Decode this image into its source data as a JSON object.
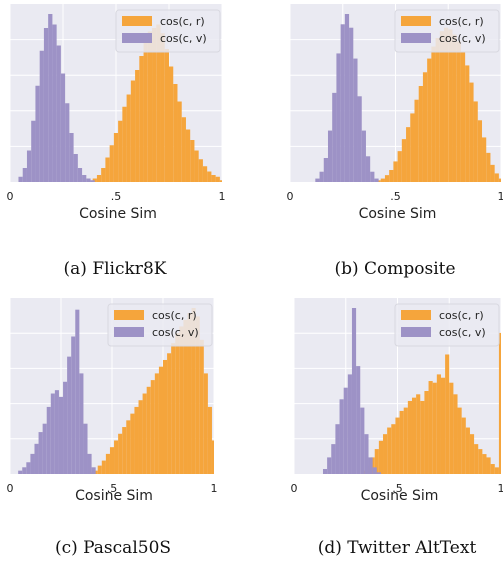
{
  "colors": {
    "r": "#f5a53c",
    "v": "#9d92c6",
    "plot_bg": "#eaeaf2",
    "grid": "#ffffff"
  },
  "chart_data": [
    {
      "type": "histogram",
      "caption": "(a) Flickr8K",
      "xlabel": "Cosine Sim",
      "xticks": [
        "0",
        ".5",
        "1"
      ],
      "xlim": [
        0,
        1
      ],
      "grid": true,
      "legend_position": "top-right",
      "series": [
        {
          "name": "cos(c, r)",
          "color": "#f5a53c",
          "x": [
            0.4,
            0.42,
            0.44,
            0.46,
            0.48,
            0.5,
            0.52,
            0.54,
            0.56,
            0.58,
            0.6,
            0.62,
            0.64,
            0.66,
            0.68,
            0.7,
            0.72,
            0.74,
            0.76,
            0.78,
            0.8,
            0.82,
            0.84,
            0.86,
            0.88,
            0.9,
            0.92,
            0.94,
            0.96,
            0.98,
            1.0
          ],
          "values": [
            2,
            4,
            8,
            14,
            21,
            28,
            35,
            43,
            50,
            58,
            64,
            72,
            80,
            86,
            88,
            90,
            85,
            76,
            66,
            56,
            46,
            37,
            30,
            24,
            18,
            13,
            9,
            6,
            4,
            3,
            1
          ]
        },
        {
          "name": "cos(c, v)",
          "color": "#9d92c6",
          "x": [
            0.05,
            0.07,
            0.09,
            0.11,
            0.13,
            0.15,
            0.17,
            0.19,
            0.21,
            0.23,
            0.25,
            0.27,
            0.29,
            0.31,
            0.33,
            0.35,
            0.37,
            0.39
          ],
          "values": [
            3,
            8,
            18,
            35,
            55,
            75,
            88,
            96,
            90,
            78,
            62,
            45,
            28,
            16,
            8,
            4,
            2,
            1
          ]
        }
      ]
    },
    {
      "type": "histogram",
      "caption": "(b) Composite",
      "xlabel": "Cosine Sim",
      "xticks": [
        "0",
        ".5",
        "1"
      ],
      "xlim": [
        0,
        1
      ],
      "grid": true,
      "legend_position": "top-right",
      "series": [
        {
          "name": "cos(c, r)",
          "color": "#f5a53c",
          "x": [
            0.42,
            0.44,
            0.46,
            0.48,
            0.5,
            0.52,
            0.54,
            0.56,
            0.58,
            0.6,
            0.62,
            0.64,
            0.66,
            0.68,
            0.7,
            0.72,
            0.74,
            0.76,
            0.78,
            0.8,
            0.82,
            0.84,
            0.86,
            0.88,
            0.9,
            0.92,
            0.94,
            0.96,
            0.98,
            1.0
          ],
          "values": [
            1,
            2,
            4,
            7,
            12,
            18,
            25,
            32,
            40,
            48,
            56,
            64,
            72,
            79,
            84,
            88,
            90,
            89,
            86,
            82,
            76,
            68,
            58,
            47,
            36,
            26,
            17,
            10,
            5,
            2
          ]
        },
        {
          "name": "cos(c, v)",
          "color": "#9d92c6",
          "x": [
            0.13,
            0.15,
            0.17,
            0.19,
            0.21,
            0.23,
            0.25,
            0.27,
            0.29,
            0.31,
            0.33,
            0.35,
            0.37,
            0.39,
            0.41
          ],
          "values": [
            2,
            6,
            14,
            30,
            52,
            75,
            92,
            98,
            90,
            72,
            50,
            30,
            15,
            6,
            2
          ]
        }
      ]
    },
    {
      "type": "histogram",
      "caption": "(c) Pascal50S",
      "xlabel": "Cosine Sim",
      "xticks": [
        "0",
        ".5",
        "1"
      ],
      "xlim": [
        0,
        1
      ],
      "grid": true,
      "legend_position": "top-right",
      "series": [
        {
          "name": "cos(c, r)",
          "color": "#f5a53c",
          "x": [
            0.4,
            0.42,
            0.44,
            0.46,
            0.48,
            0.5,
            0.52,
            0.54,
            0.56,
            0.58,
            0.6,
            0.62,
            0.64,
            0.66,
            0.68,
            0.7,
            0.72,
            0.74,
            0.76,
            0.78,
            0.8,
            0.82,
            0.84,
            0.86,
            0.88,
            0.9,
            0.92,
            0.94,
            0.96,
            0.98,
            1.0
          ],
          "values": [
            1,
            2,
            5,
            8,
            12,
            16,
            20,
            24,
            28,
            32,
            36,
            40,
            44,
            48,
            52,
            56,
            60,
            64,
            68,
            72,
            78,
            84,
            88,
            92,
            96,
            99,
            94,
            80,
            60,
            40,
            20
          ]
        },
        {
          "name": "cos(c, v)",
          "color": "#9d92c6",
          "x": [
            0.05,
            0.07,
            0.09,
            0.11,
            0.13,
            0.15,
            0.17,
            0.19,
            0.21,
            0.23,
            0.25,
            0.27,
            0.29,
            0.31,
            0.33,
            0.35,
            0.37,
            0.39,
            0.41
          ],
          "values": [
            2,
            4,
            7,
            12,
            18,
            25,
            30,
            40,
            48,
            50,
            46,
            55,
            70,
            82,
            98,
            60,
            30,
            12,
            4
          ]
        }
      ]
    },
    {
      "type": "histogram",
      "caption": "(d) Twitter AltText",
      "xlabel": "Cosine Sim",
      "xticks": [
        "0",
        ".5",
        "1"
      ],
      "xlim": [
        0,
        1
      ],
      "grid": true,
      "legend_position": "top-right",
      "series": [
        {
          "name": "cos(c, r)",
          "color": "#f5a53c",
          "x": [
            0.34,
            0.36,
            0.38,
            0.4,
            0.42,
            0.44,
            0.46,
            0.48,
            0.5,
            0.52,
            0.54,
            0.56,
            0.58,
            0.6,
            0.62,
            0.64,
            0.66,
            0.68,
            0.7,
            0.72,
            0.74,
            0.76,
            0.78,
            0.8,
            0.82,
            0.84,
            0.86,
            0.88,
            0.9,
            0.92,
            0.94,
            0.96,
            0.98,
            1.0
          ],
          "values": [
            2,
            5,
            10,
            15,
            20,
            24,
            28,
            30,
            34,
            38,
            40,
            44,
            46,
            48,
            44,
            50,
            56,
            55,
            60,
            58,
            72,
            55,
            48,
            40,
            34,
            28,
            24,
            18,
            15,
            12,
            10,
            6,
            4,
            85
          ]
        },
        {
          "name": "cos(c, v)",
          "color": "#9d92c6",
          "x": [
            0.15,
            0.17,
            0.19,
            0.21,
            0.23,
            0.25,
            0.27,
            0.29,
            0.31,
            0.33,
            0.35,
            0.37,
            0.39,
            0.41
          ],
          "values": [
            3,
            10,
            18,
            30,
            45,
            52,
            60,
            100,
            65,
            40,
            24,
            10,
            4,
            1
          ]
        }
      ]
    }
  ]
}
